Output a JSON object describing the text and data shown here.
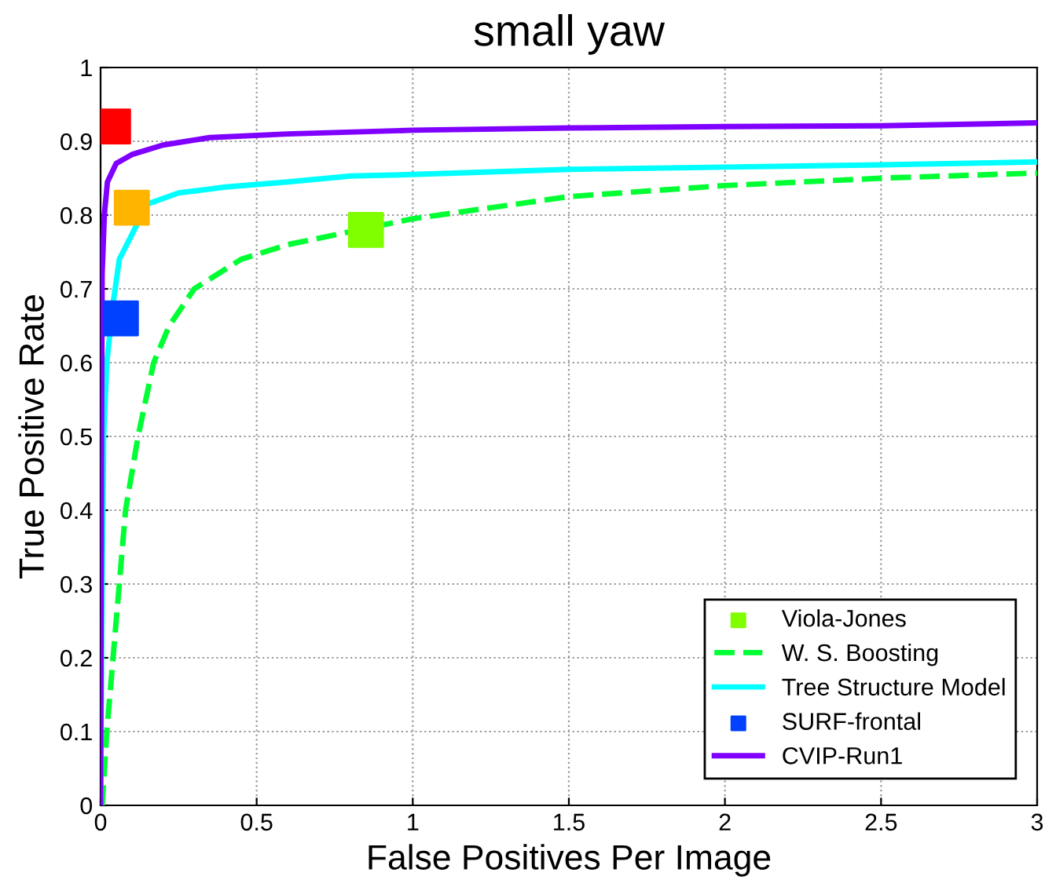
{
  "chart_data": {
    "type": "line",
    "title": "small yaw",
    "xlabel": "False Positives Per Image",
    "ylabel": "True Positive Rate",
    "xlim": [
      0,
      3
    ],
    "xticks": [
      0,
      0.5,
      1,
      1.5,
      2,
      2.5,
      3
    ],
    "ylim": [
      0,
      1
    ],
    "yticks": [
      0,
      0.1,
      0.2,
      0.3,
      0.4,
      0.5,
      0.6,
      0.7,
      0.8,
      0.9,
      1
    ],
    "grid": true,
    "legend": "bottom right",
    "series": [
      {
        "type": "scatter",
        "marker": "square",
        "color": "#ff0000",
        "x": [
          0.04
        ],
        "values": [
          0.92
        ]
      },
      {
        "type": "scatter",
        "marker": "square",
        "color": "#ffb400",
        "x": [
          0.1
        ],
        "values": [
          0.81
        ]
      },
      {
        "name": "Viola-Jones",
        "type": "scatter",
        "marker": "square",
        "color": "#80ff00",
        "x": [
          0.85
        ],
        "values": [
          0.78
        ]
      },
      {
        "name": "W. S. Boosting",
        "line_style": "dashed",
        "color": "#00ff33",
        "x": [
          0.005,
          0.02,
          0.04,
          0.06,
          0.08,
          0.12,
          0.17,
          0.22,
          0.3,
          0.45,
          0.6,
          1,
          1.25,
          1.5,
          2,
          2.5,
          3
        ],
        "values": [
          0,
          0.1,
          0.2,
          0.3,
          0.4,
          0.5,
          0.6,
          0.65,
          0.7,
          0.74,
          0.76,
          0.795,
          0.81,
          0.825,
          0.84,
          0.85,
          0.857
        ]
      },
      {
        "name": "Tree Structure Model",
        "line_style": "solid",
        "color": "#00ffff",
        "x": [
          0,
          0.005,
          0.01,
          0.02,
          0.04,
          0.06,
          0.15,
          0.25,
          0.4,
          0.6,
          0.8,
          1,
          1.5,
          2,
          2.5,
          3
        ],
        "values": [
          0,
          0.3,
          0.5,
          0.6,
          0.68,
          0.74,
          0.815,
          0.83,
          0.838,
          0.845,
          0.853,
          0.855,
          0.862,
          0.865,
          0.868,
          0.872
        ]
      },
      {
        "name": "SURF-frontal",
        "type": "scatter",
        "marker": "square",
        "color": "#0040ff",
        "x": [
          0.065
        ],
        "values": [
          0.66
        ]
      },
      {
        "name": "CVIP-Run1",
        "line_style": "solid",
        "color": "#8000ff",
        "x": [
          0,
          0.003,
          0.005,
          0.012,
          0.022,
          0.05,
          0.1,
          0.2,
          0.35,
          0.6,
          1,
          1.5,
          2,
          2.5,
          3
        ],
        "values": [
          0,
          0.5,
          0.72,
          0.8,
          0.845,
          0.87,
          0.882,
          0.895,
          0.905,
          0.91,
          0.915,
          0.918,
          0.92,
          0.921,
          0.925
        ]
      }
    ]
  }
}
